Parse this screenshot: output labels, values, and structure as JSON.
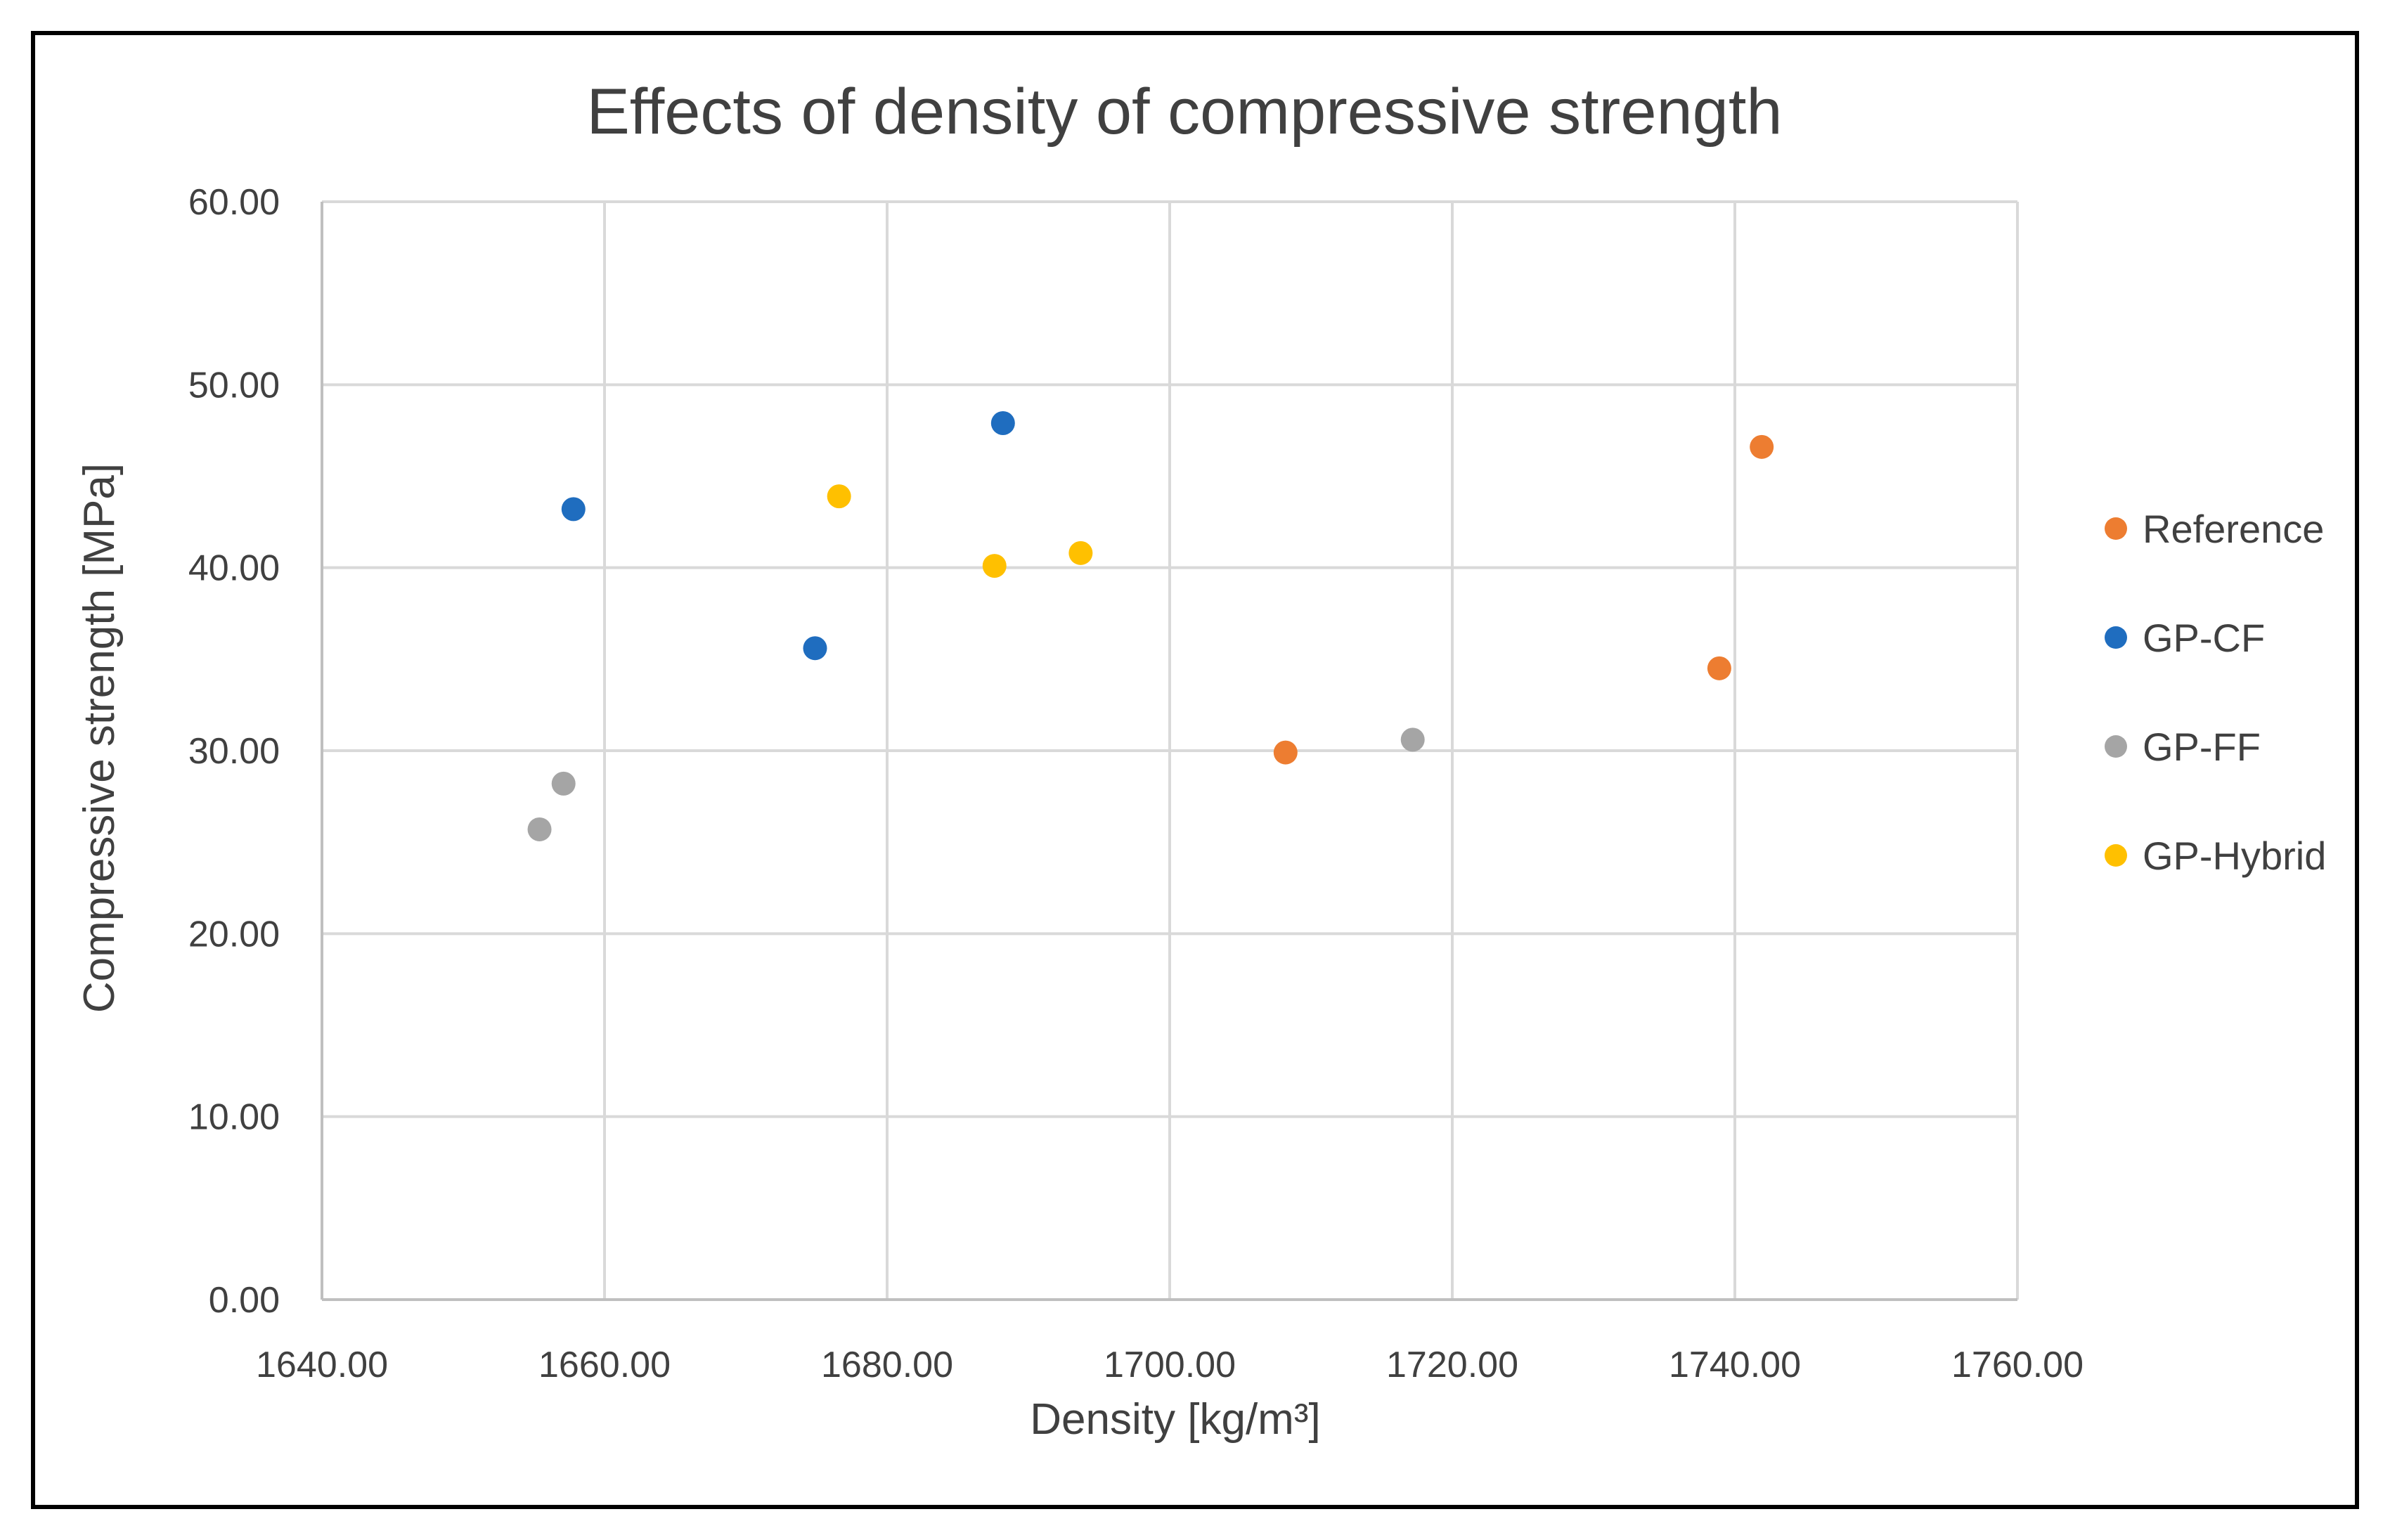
{
  "chart_data": {
    "type": "scatter",
    "title": "Effects of density of compressive strength",
    "xlabel": "Density [kg/m³]",
    "ylabel": "Compressive strength [MPa]",
    "xlim": [
      1640,
      1760
    ],
    "ylim": [
      0,
      60
    ],
    "x_ticks": [
      1640,
      1660,
      1680,
      1700,
      1720,
      1740,
      1760
    ],
    "y_ticks": [
      0,
      10,
      20,
      30,
      40,
      50,
      60
    ],
    "x_tick_labels": [
      "1640.00",
      "1660.00",
      "1680.00",
      "1700.00",
      "1720.00",
      "1740.00",
      "1760.00"
    ],
    "y_tick_labels": [
      "0.00",
      "10.00",
      "20.00",
      "30.00",
      "40.00",
      "50.00",
      "60.00"
    ],
    "grid": true,
    "legend_position": "right",
    "series": [
      {
        "name": "Reference",
        "color": "#ed7d31",
        "points": [
          {
            "x": 1708.2,
            "y": 29.9
          },
          {
            "x": 1738.9,
            "y": 34.5
          },
          {
            "x": 1741.9,
            "y": 46.6
          }
        ]
      },
      {
        "name": "GP-CF",
        "color": "#1f6dbf",
        "points": [
          {
            "x": 1657.8,
            "y": 43.2
          },
          {
            "x": 1674.9,
            "y": 35.6
          },
          {
            "x": 1688.2,
            "y": 47.9
          }
        ]
      },
      {
        "name": "GP-FF",
        "color": "#a5a5a5",
        "points": [
          {
            "x": 1655.4,
            "y": 25.7
          },
          {
            "x": 1657.1,
            "y": 28.2
          },
          {
            "x": 1717.2,
            "y": 30.6
          }
        ]
      },
      {
        "name": "GP-Hybrid",
        "color": "#ffc000",
        "points": [
          {
            "x": 1676.6,
            "y": 43.9
          },
          {
            "x": 1687.6,
            "y": 40.1
          },
          {
            "x": 1693.7,
            "y": 40.8
          }
        ]
      }
    ]
  }
}
